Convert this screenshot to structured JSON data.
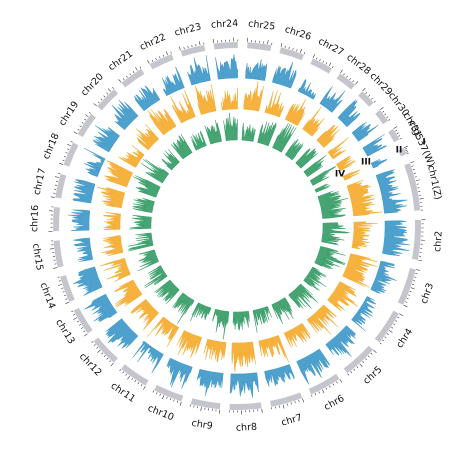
{
  "figure": {
    "type": "circos",
    "chromosomes": [
      {
        "name": "chr1(Z)",
        "size": 1.8
      },
      {
        "name": "chr2",
        "size": 1.5
      },
      {
        "name": "chr3",
        "size": 1.4
      },
      {
        "name": "chr4",
        "size": 1.3
      },
      {
        "name": "chr5",
        "size": 1.3
      },
      {
        "name": "chr6",
        "size": 1.2
      },
      {
        "name": "chr7",
        "size": 1.2
      },
      {
        "name": "chr8",
        "size": 1.2
      },
      {
        "name": "chr9",
        "size": 1.1
      },
      {
        "name": "chr10",
        "size": 1.1
      },
      {
        "name": "chr11",
        "size": 1.1
      },
      {
        "name": "chr12",
        "size": 1.1
      },
      {
        "name": "chr13",
        "size": 1.0
      },
      {
        "name": "chr14",
        "size": 1.0
      },
      {
        "name": "chr15",
        "size": 1.0
      },
      {
        "name": "chr16",
        "size": 0.9
      },
      {
        "name": "chr17",
        "size": 0.9
      },
      {
        "name": "chr18",
        "size": 0.9
      },
      {
        "name": "chr19",
        "size": 0.9
      },
      {
        "name": "chr20",
        "size": 0.9
      },
      {
        "name": "chr21",
        "size": 0.9
      },
      {
        "name": "chr22",
        "size": 0.9
      },
      {
        "name": "chr23",
        "size": 0.9
      },
      {
        "name": "chr24",
        "size": 0.9
      },
      {
        "name": "chr25",
        "size": 0.9
      },
      {
        "name": "chr26",
        "size": 0.9
      },
      {
        "name": "chr27",
        "size": 0.8
      },
      {
        "name": "chr28",
        "size": 0.7
      },
      {
        "name": "chr29",
        "size": 0.6
      },
      {
        "name": "chr30",
        "size": 0.5
      },
      {
        "name": "chr31",
        "size": 0.45
      },
      {
        "name": "ctg537(W)",
        "size": 0.25
      }
    ],
    "tracks": [
      {
        "label": "I",
        "color": "#c5c5cd"
      },
      {
        "label": "II",
        "color": "#2f8fc4"
      },
      {
        "label": "III",
        "color": "#f3a51c"
      },
      {
        "label": "IV",
        "color": "#27955a"
      }
    ]
  }
}
